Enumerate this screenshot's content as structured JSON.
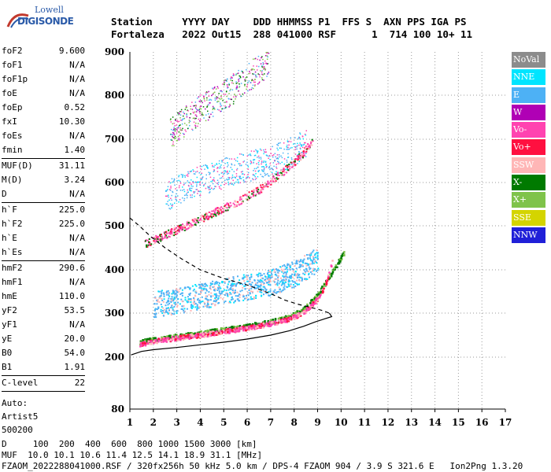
{
  "logo": {
    "line1": "Lowell",
    "line2": "DIGISONDE"
  },
  "header": {
    "line1": "Station     YYYY DAY    DDD HHMMSS P1  FFS S  AXN PPS IGA PS",
    "line2": "Fortaleza   2022 Out15  288 041000 RSF      1  714 100 10+ 11"
  },
  "params": [
    {
      "k": "foF2",
      "v": "9.600"
    },
    {
      "k": "foF1",
      "v": "N/A"
    },
    {
      "k": "foF1p",
      "v": "N/A"
    },
    {
      "k": "foE",
      "v": "N/A"
    },
    {
      "k": "foEp",
      "v": "0.52"
    },
    {
      "k": "fxI",
      "v": "10.30"
    },
    {
      "k": "foEs",
      "v": "N/A"
    },
    {
      "k": "fmin",
      "v": "1.40"
    },
    {
      "k": "MUF(D)",
      "v": "31.11"
    },
    {
      "k": "M(D)",
      "v": "3.24"
    },
    {
      "k": "D",
      "v": "N/A"
    },
    {
      "k": "h`F",
      "v": "225.0"
    },
    {
      "k": "h`F2",
      "v": "225.0"
    },
    {
      "k": "h`E",
      "v": "N/A"
    },
    {
      "k": "h`Es",
      "v": "N/A"
    },
    {
      "k": "hmF2",
      "v": "290.6"
    },
    {
      "k": "hmF1",
      "v": "N/A"
    },
    {
      "k": "hmE",
      "v": "110.0"
    },
    {
      "k": "yF2",
      "v": "53.5"
    },
    {
      "k": "yF1",
      "v": "N/A"
    },
    {
      "k": "yE",
      "v": "20.0"
    },
    {
      "k": "B0",
      "v": "54.0"
    },
    {
      "k": "B1",
      "v": "1.91"
    },
    {
      "k": "C-level",
      "v": "22"
    }
  ],
  "auto": {
    "label": "Auto:",
    "artist": "Artist5",
    "version": "500200"
  },
  "legend": [
    {
      "label": "NoVal",
      "color": "#8c8c8c"
    },
    {
      "label": "NNE",
      "color": "#00e5ff"
    },
    {
      "label": "E",
      "color": "#4db1f5"
    },
    {
      "label": "W",
      "color": "#b000b5"
    },
    {
      "label": "Vo-",
      "color": "#ff43b0"
    },
    {
      "label": "Vo+",
      "color": "#ff1040"
    },
    {
      "label": "SSW",
      "color": "#ffb6b6"
    },
    {
      "label": "X-",
      "color": "#007a00"
    },
    {
      "label": "X+",
      "color": "#7fc34a"
    },
    {
      "label": "SSE",
      "color": "#d4d400"
    },
    {
      "label": "NNW",
      "color": "#2020d8"
    }
  ],
  "footer": {
    "d_line": "D     100  200  400  600  800 1000 1500 3000 [km]",
    "muf_line": "MUF  10.0 10.1 10.6 11.4 12.5 14.1 18.9 31.1 [MHz]",
    "file_line": "FZAOM_2022288041000.RSF / 320fx256h 50 kHz 5.0 km / DPS-4 FZAOM 904 / 3.9 S 321.6 E   Ion2Png 1.3.20"
  },
  "chart_data": {
    "type": "scatter",
    "x_ticks": [
      1,
      2,
      3,
      4,
      5,
      6,
      7,
      8,
      9,
      10,
      11,
      12,
      13,
      14,
      15,
      16,
      17
    ],
    "y_ticks": [
      80,
      200,
      300,
      400,
      500,
      600,
      700,
      800,
      900
    ],
    "xlim": [
      1,
      17
    ],
    "ylim": [
      80,
      900
    ],
    "grid": true,
    "traces": [
      {
        "name": "O-trace F2",
        "x": [
          1.4,
          2.0,
          3.0,
          4.0,
          5.0,
          6.0,
          7.0,
          7.8,
          8.4,
          8.9,
          9.3,
          9.6
        ],
        "y": [
          230,
          238,
          245,
          252,
          260,
          268,
          278,
          288,
          305,
          330,
          365,
          420
        ]
      },
      {
        "name": "X-trace F2",
        "x": [
          1.4,
          2.0,
          3.0,
          4.0,
          5.0,
          6.0,
          7.0,
          7.8,
          8.4,
          8.9,
          9.3,
          9.7,
          10.1
        ],
        "y": [
          235,
          242,
          249,
          256,
          264,
          272,
          282,
          293,
          312,
          338,
          370,
          405,
          440
        ]
      },
      {
        "name": "Spread F",
        "x": [
          2.0,
          3.0,
          4.0,
          5.0,
          6.0,
          7.0,
          8.0,
          9.0
        ],
        "y": [
          322,
          330,
          340,
          352,
          362,
          372,
          392,
          425
        ]
      },
      {
        "name": "2nd hop",
        "x": [
          1.6,
          2.5,
          3.5,
          4.5,
          5.5,
          6.5,
          7.5,
          8.3,
          8.8
        ],
        "y": [
          460,
          480,
          505,
          530,
          555,
          585,
          625,
          665,
          700
        ]
      },
      {
        "name": "2nd hop spread",
        "x": [
          2.5,
          3.5,
          4.5,
          5.5,
          6.5,
          7.5,
          8.5
        ],
        "y": [
          570,
          595,
          615,
          630,
          645,
          660,
          690
        ]
      },
      {
        "name": "3rd hop",
        "x": [
          2.7,
          3.3,
          4.0,
          4.8,
          5.5,
          6.2,
          6.9
        ],
        "y": [
          715,
          740,
          768,
          795,
          820,
          850,
          880
        ]
      }
    ],
    "profile_solid": {
      "x": [
        1.05,
        1.5,
        2.0,
        3.0,
        4.0,
        5.0,
        6.0,
        7.0,
        7.8,
        8.4,
        8.9,
        9.3,
        9.6,
        9.5
      ],
      "y": [
        205,
        213,
        217,
        222,
        228,
        234,
        241,
        250,
        260,
        270,
        280,
        287,
        292,
        300
      ]
    },
    "profile_dashed": {
      "x": [
        1.0,
        1.4,
        1.9,
        2.5,
        3.2,
        4.0,
        5.0,
        6.0,
        7.0,
        7.6,
        8.2,
        8.8,
        9.2,
        9.5
      ],
      "y": [
        518,
        500,
        475,
        450,
        425,
        400,
        380,
        365,
        345,
        330,
        320,
        312,
        306,
        300
      ]
    }
  }
}
